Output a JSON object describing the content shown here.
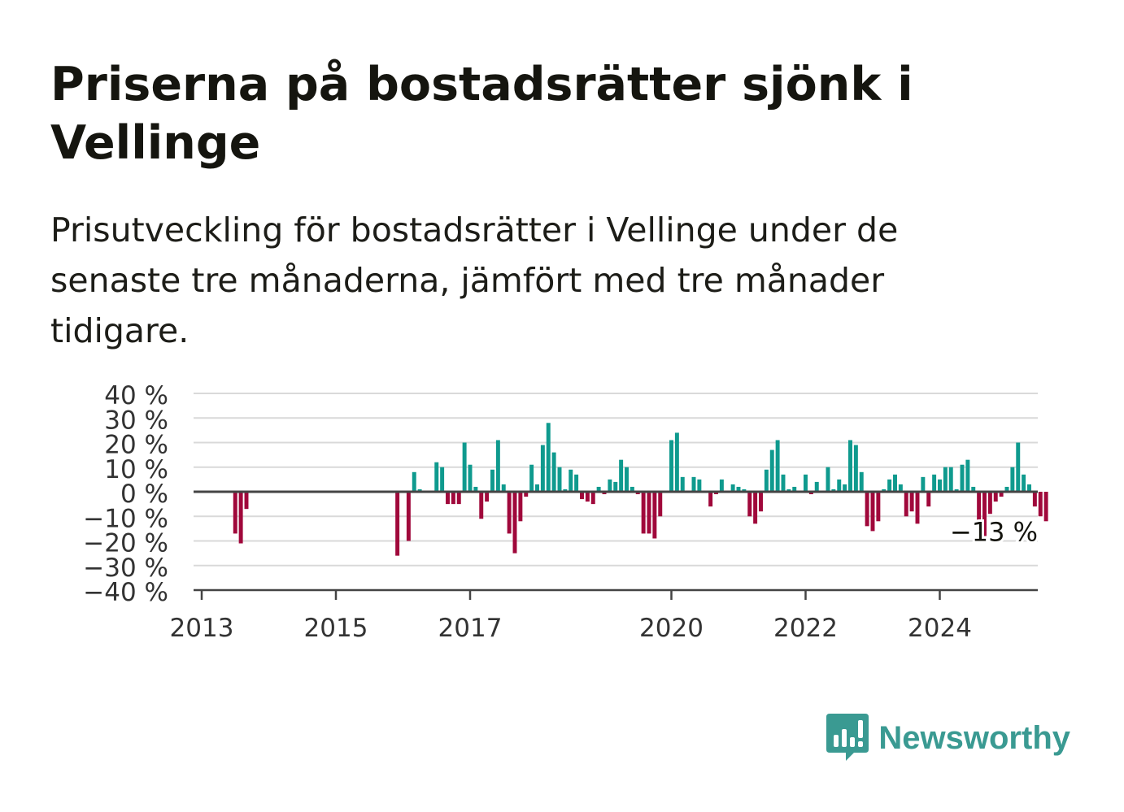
{
  "header": {
    "title": "Priserna på bostadsrätter sjönk i Vellinge",
    "subtitle": "Prisutveckling för bostadsrätter i Vellinge under de senaste tre månaderna, jämfört med tre månader tidigare."
  },
  "brand": {
    "name": "Newsworthy",
    "icon": "newsworthy-logo-icon",
    "color": "#3a9a92"
  },
  "chart_data": {
    "type": "bar",
    "title": "",
    "xlabel": "",
    "ylabel": "",
    "ylim": [
      -40,
      40
    ],
    "yticks": [
      40,
      30,
      20,
      10,
      0,
      -10,
      -20,
      -30,
      -40
    ],
    "ytick_labels": [
      "40 %",
      "30 %",
      "20 %",
      "10 %",
      "0 %",
      "−10 %",
      "−20 %",
      "−30 %",
      "−40 %"
    ],
    "xtick_labels": [
      "2013",
      "2015",
      "2017",
      "2020",
      "2022",
      "2024"
    ],
    "xticks_years": [
      2013,
      2015,
      2017,
      2020,
      2022,
      2024
    ],
    "grid": true,
    "colors": {
      "positive": "#0f9a8e",
      "negative": "#a0083b",
      "grid": "#d9d9d9",
      "axis": "#444444"
    },
    "annotation": {
      "label": "−13 %",
      "value": -13
    },
    "series": [
      {
        "start": "2013-07",
        "frequency": "monthly",
        "values": [
          -17,
          -21,
          -7,
          null,
          null,
          null,
          null,
          null,
          null,
          null,
          null,
          null,
          null,
          null,
          null,
          null,
          null,
          null,
          null,
          null,
          null,
          null,
          null,
          null,
          null,
          null,
          null,
          null,
          null,
          -26,
          null,
          -20,
          8,
          1,
          null,
          null,
          12,
          10,
          -5,
          -5,
          -5,
          20,
          11,
          2,
          -11,
          -4,
          9,
          21,
          3,
          -17,
          -25,
          -12,
          -2,
          11,
          3,
          19,
          28,
          16,
          10,
          1,
          9,
          7,
          -3,
          -4,
          -5,
          2,
          -1,
          5,
          4,
          13,
          10,
          2,
          -1,
          -17,
          -17,
          -19,
          -10,
          null,
          21,
          24,
          6,
          null,
          6,
          5,
          null,
          -6,
          -1,
          5,
          null,
          3,
          2,
          1,
          -10,
          -13,
          -8,
          9,
          17,
          21,
          7,
          1,
          2,
          null,
          7,
          -1,
          4,
          null,
          10,
          1,
          5,
          3,
          21,
          19,
          8,
          -14,
          -16,
          -12,
          1,
          5,
          7,
          3,
          -10,
          -8,
          -13,
          6,
          -6,
          7,
          5,
          10,
          10,
          1,
          11,
          13,
          2,
          -14,
          -18,
          -9,
          -4,
          -2,
          2,
          10,
          20,
          7,
          3,
          -6,
          -10,
          -12
        ]
      }
    ]
  }
}
